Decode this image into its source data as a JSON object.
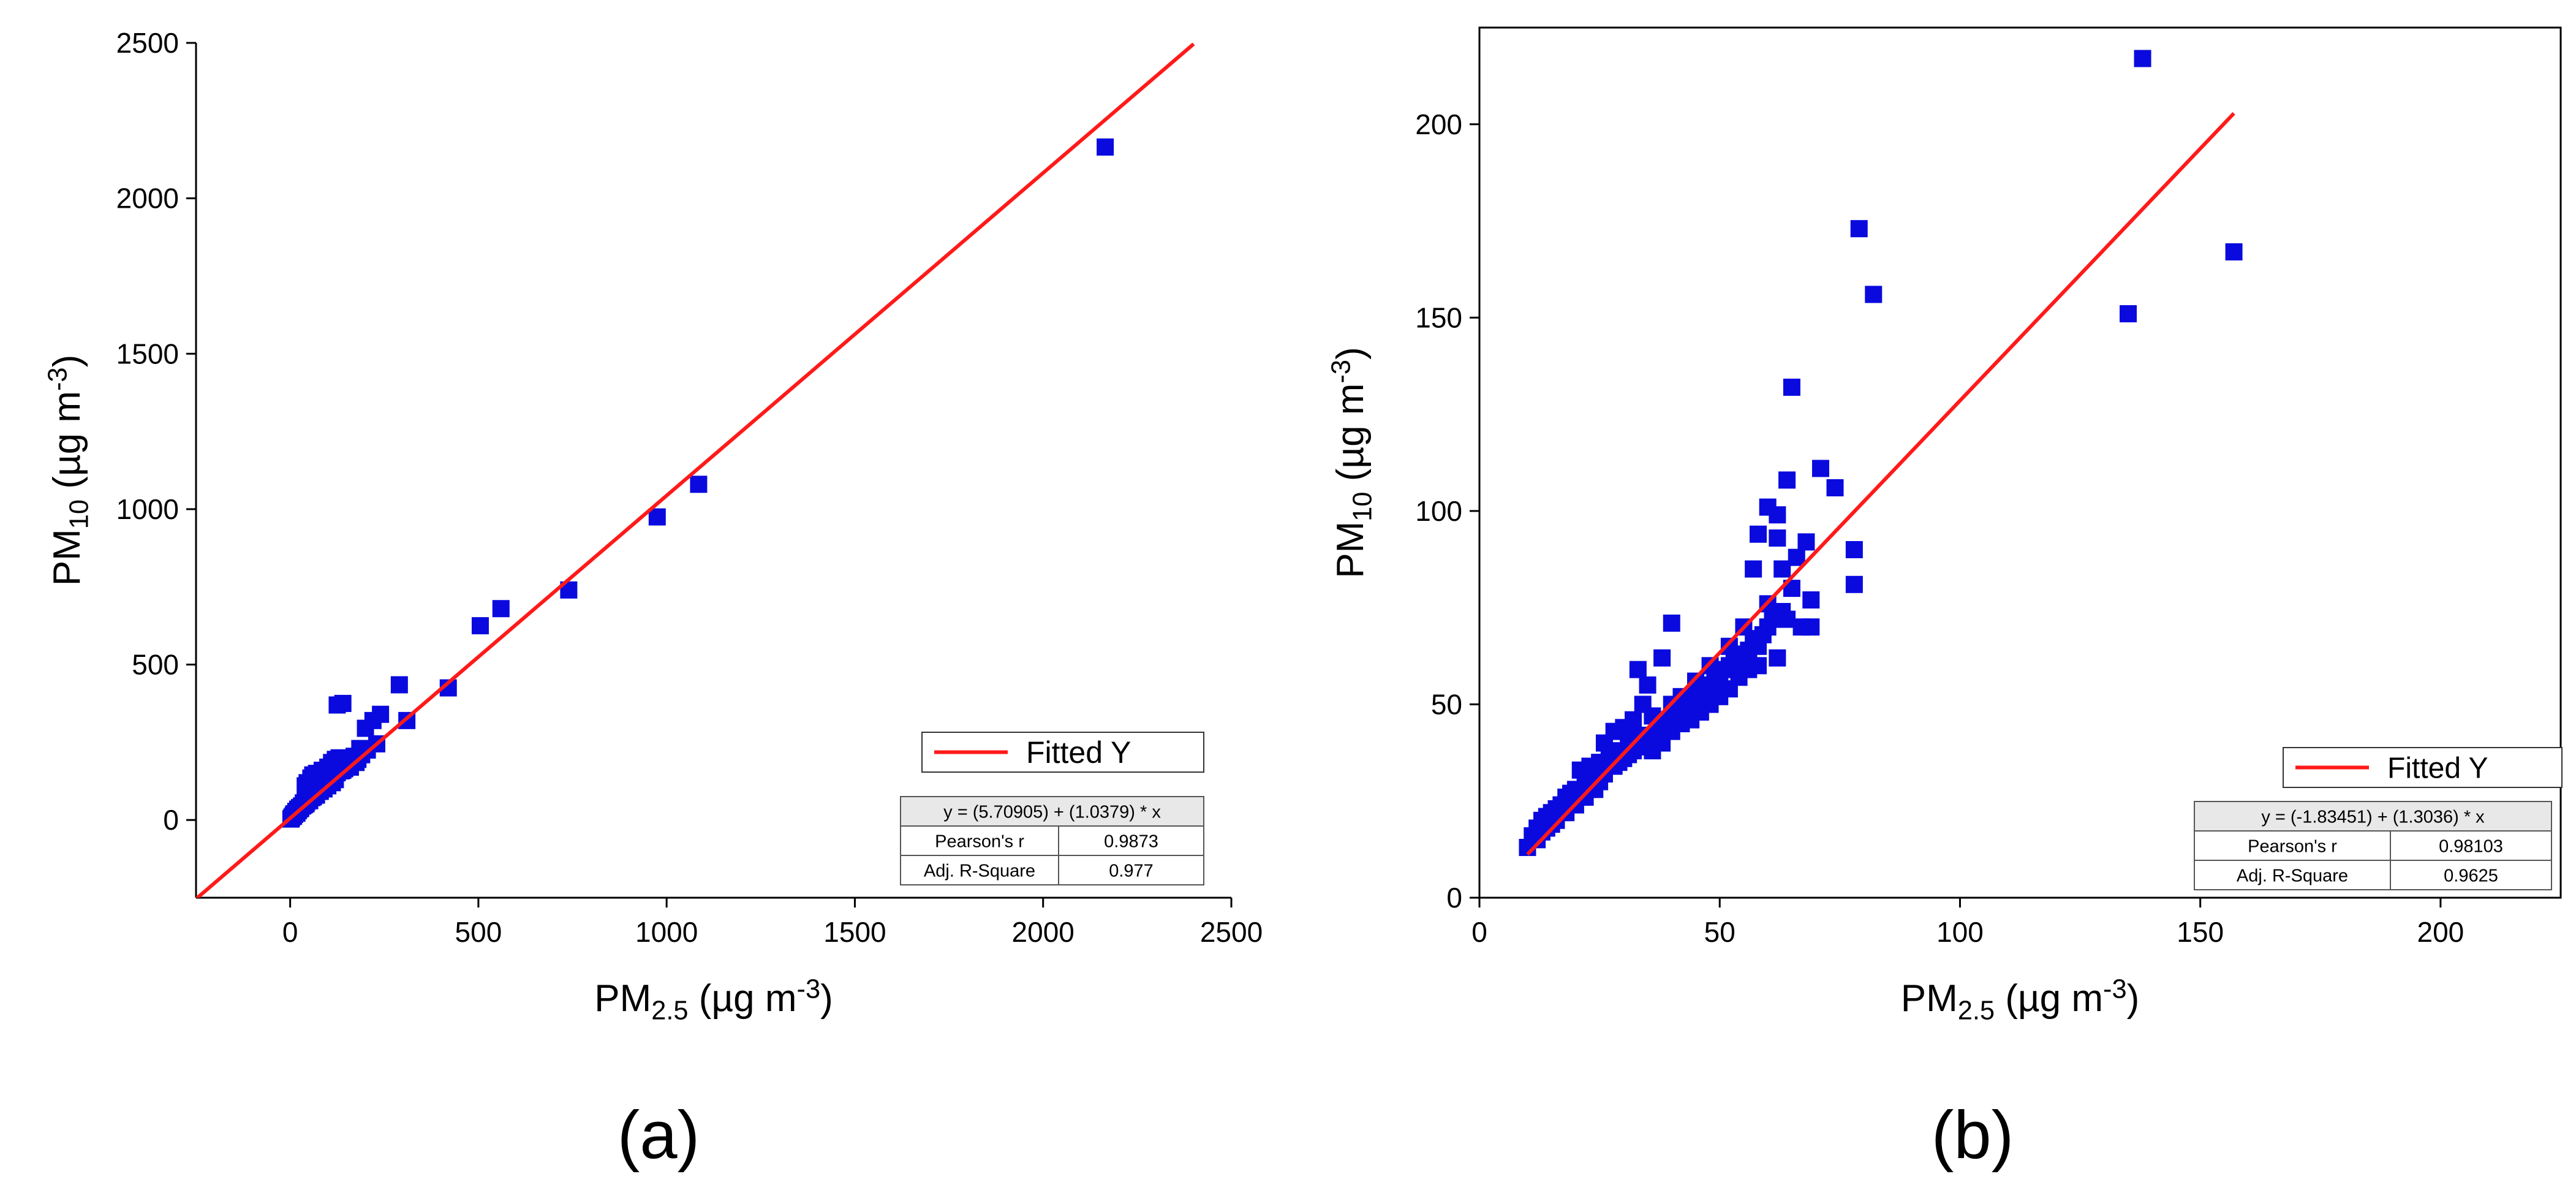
{
  "chart_data": [
    {
      "panel_label": "(a)",
      "type": "scatter",
      "xlabel": {
        "base": "PM",
        "sub": "2.5",
        "rest": " (µg m",
        "sup": "-3",
        "close": ")"
      },
      "ylabel": {
        "base": "PM",
        "sub": "10",
        "rest": " (µg m",
        "sup": "-3",
        "close": ")"
      },
      "xlim": [
        -250,
        2500
      ],
      "ylim": [
        -250,
        2500
      ],
      "xticks": [
        0,
        500,
        1000,
        1500,
        2000,
        2500
      ],
      "yticks": [
        0,
        500,
        1000,
        1500,
        2000,
        2500
      ],
      "marker_color": "#0a0adf",
      "fit": {
        "intercept": 5.70905,
        "slope": 1.0379,
        "color": "#ff1a1a",
        "x_range": [
          -250,
          2400
        ],
        "legend_label": "Fitted Y",
        "equation": "y = (5.70905) + (1.0379) * x",
        "stats": [
          {
            "name": "Pearson's r",
            "value": "0.9873"
          },
          {
            "name": "Adj. R-Square",
            "value": "0.977"
          }
        ]
      },
      "points": [
        [
          2165,
          2165
        ],
        [
          1085,
          1080
        ],
        [
          975,
          975
        ],
        [
          740,
          740
        ],
        [
          560,
          680
        ],
        [
          505,
          625
        ],
        [
          420,
          425
        ],
        [
          290,
          435
        ],
        [
          310,
          320
        ],
        [
          140,
          375
        ],
        [
          125,
          370
        ],
        [
          240,
          340
        ],
        [
          220,
          320
        ],
        [
          200,
          295
        ],
        [
          230,
          245
        ],
        [
          185,
          230
        ],
        [
          205,
          225
        ],
        [
          190,
          210
        ],
        [
          170,
          205
        ],
        [
          150,
          195
        ],
        [
          130,
          200
        ],
        [
          120,
          195
        ],
        [
          110,
          185
        ],
        [
          100,
          170
        ],
        [
          85,
          160
        ],
        [
          70,
          150
        ],
        [
          60,
          145
        ],
        [
          55,
          135
        ],
        [
          45,
          120
        ],
        [
          40,
          110
        ],
        [
          95,
          140
        ],
        [
          110,
          150
        ],
        [
          130,
          165
        ],
        [
          155,
          175
        ],
        [
          160,
          190
        ],
        [
          140,
          160
        ],
        [
          90,
          115
        ],
        [
          75,
          100
        ],
        [
          65,
          90
        ],
        [
          55,
          80
        ],
        [
          50,
          70
        ],
        [
          40,
          60
        ],
        [
          35,
          55
        ],
        [
          30,
          45
        ],
        [
          25,
          40
        ],
        [
          20,
          35
        ],
        [
          15,
          28
        ],
        [
          10,
          20
        ],
        [
          8,
          15
        ],
        [
          5,
          10
        ],
        [
          3,
          5
        ],
        [
          2,
          3
        ],
        [
          12,
          18
        ],
        [
          18,
          22
        ],
        [
          22,
          30
        ],
        [
          28,
          38
        ],
        [
          33,
          45
        ],
        [
          38,
          50
        ],
        [
          44,
          58
        ],
        [
          48,
          66
        ],
        [
          58,
          72
        ],
        [
          62,
          80
        ],
        [
          68,
          88
        ],
        [
          72,
          95
        ],
        [
          78,
          102
        ],
        [
          82,
          110
        ],
        [
          88,
          118
        ],
        [
          92,
          125
        ],
        [
          98,
          132
        ],
        [
          105,
          138
        ],
        [
          115,
          145
        ],
        [
          125,
          152
        ],
        [
          135,
          158
        ],
        [
          145,
          165
        ],
        [
          160,
          170
        ],
        [
          175,
          185
        ],
        [
          180,
          195
        ],
        [
          62,
          75
        ],
        [
          52,
          62
        ],
        [
          42,
          52
        ],
        [
          36,
          48
        ],
        [
          26,
          36
        ],
        [
          16,
          24
        ],
        [
          9,
          12
        ],
        [
          70,
          80
        ],
        [
          80,
          92
        ],
        [
          90,
          100
        ],
        [
          100,
          110
        ],
        [
          112,
          120
        ],
        [
          120,
          130
        ]
      ]
    },
    {
      "panel_label": "(b)",
      "type": "scatter",
      "xlabel": {
        "base": "PM",
        "sub": "2.5",
        "rest": " (µg m",
        "sup": "-3",
        "close": ")"
      },
      "ylabel": {
        "base": "PM",
        "sub": "10",
        "rest": " (µg m",
        "sup": "-3",
        "close": ")"
      },
      "xlim": [
        0,
        225
      ],
      "ylim": [
        0,
        225
      ],
      "xticks": [
        0,
        50,
        100,
        150,
        200
      ],
      "yticks": [
        0,
        50,
        100,
        150,
        200
      ],
      "marker_color": "#0a0adf",
      "fit": {
        "intercept": -1.83451,
        "slope": 1.3036,
        "color": "#ff1a1a",
        "x_range": [
          10,
          157
        ],
        "legend_label": "Fitted Y",
        "equation": "y = (-1.83451) + (1.3036) * x",
        "stats": [
          {
            "name": "Pearson's r",
            "value": "0.98103"
          },
          {
            "name": "Adj. R-Square",
            "value": "0.9625"
          }
        ]
      },
      "points": [
        [
          138,
          217
        ],
        [
          79,
          173
        ],
        [
          82,
          156
        ],
        [
          157,
          167
        ],
        [
          135,
          151
        ],
        [
          65,
          132
        ],
        [
          71,
          111
        ],
        [
          74,
          106
        ],
        [
          64,
          108
        ],
        [
          60,
          101
        ],
        [
          62,
          99
        ],
        [
          58,
          94
        ],
        [
          62,
          93
        ],
        [
          68,
          92
        ],
        [
          66,
          88
        ],
        [
          78,
          90
        ],
        [
          57,
          85
        ],
        [
          63,
          85
        ],
        [
          69,
          77
        ],
        [
          78,
          81
        ],
        [
          67,
          70
        ],
        [
          69,
          70
        ],
        [
          64,
          72
        ],
        [
          60,
          76
        ],
        [
          55,
          70
        ],
        [
          52,
          65
        ],
        [
          58,
          65
        ],
        [
          56,
          61
        ],
        [
          62,
          62
        ],
        [
          40,
          71
        ],
        [
          38,
          62
        ],
        [
          33,
          59
        ],
        [
          35,
          55
        ],
        [
          34,
          50
        ],
        [
          48,
          60
        ],
        [
          45,
          56
        ],
        [
          50,
          55
        ],
        [
          42,
          52
        ],
        [
          46,
          51
        ],
        [
          44,
          48
        ],
        [
          40,
          50
        ],
        [
          36,
          47
        ],
        [
          32,
          46
        ],
        [
          30,
          44
        ],
        [
          28,
          43
        ],
        [
          26,
          40
        ],
        [
          31,
          40
        ],
        [
          33,
          42
        ],
        [
          29,
          38
        ],
        [
          27,
          37
        ],
        [
          25,
          35
        ],
        [
          23,
          34
        ],
        [
          21,
          33
        ],
        [
          22,
          30
        ],
        [
          24,
          31
        ],
        [
          20,
          28
        ],
        [
          19,
          27
        ],
        [
          18,
          26
        ],
        [
          17,
          24
        ],
        [
          16,
          23
        ],
        [
          15,
          22
        ],
        [
          14,
          21
        ],
        [
          13,
          20
        ],
        [
          12,
          18
        ],
        [
          11,
          16
        ],
        [
          10,
          13
        ],
        [
          12,
          15
        ],
        [
          14,
          18
        ],
        [
          16,
          20
        ],
        [
          18,
          22
        ],
        [
          20,
          24
        ],
        [
          22,
          26
        ],
        [
          24,
          28
        ],
        [
          26,
          32
        ],
        [
          28,
          34
        ],
        [
          30,
          36
        ],
        [
          32,
          38
        ],
        [
          34,
          40
        ],
        [
          36,
          42
        ],
        [
          38,
          45
        ],
        [
          40,
          46
        ],
        [
          42,
          48
        ],
        [
          44,
          50
        ],
        [
          46,
          53
        ],
        [
          48,
          55
        ],
        [
          50,
          58
        ],
        [
          52,
          60
        ],
        [
          54,
          62
        ],
        [
          56,
          64
        ],
        [
          58,
          67
        ],
        [
          60,
          70
        ],
        [
          27,
          35
        ],
        [
          29,
          35
        ],
        [
          31,
          37
        ],
        [
          33,
          39
        ],
        [
          35,
          41
        ],
        [
          37,
          44
        ],
        [
          39,
          46
        ],
        [
          41,
          47
        ],
        [
          43,
          49
        ],
        [
          45,
          52
        ],
        [
          47,
          54
        ],
        [
          49,
          57
        ],
        [
          51,
          59
        ],
        [
          53,
          61
        ],
        [
          55,
          63
        ],
        [
          57,
          66
        ],
        [
          59,
          68
        ],
        [
          61,
          72
        ],
        [
          63,
          74
        ],
        [
          65,
          80
        ],
        [
          36,
          38
        ],
        [
          38,
          40
        ],
        [
          40,
          43
        ],
        [
          42,
          45
        ],
        [
          44,
          46
        ],
        [
          46,
          48
        ],
        [
          48,
          50
        ],
        [
          50,
          52
        ],
        [
          52,
          54
        ],
        [
          54,
          57
        ],
        [
          56,
          59
        ],
        [
          58,
          60
        ],
        [
          25,
          30
        ],
        [
          23,
          28
        ],
        [
          21,
          26
        ],
        [
          19,
          24
        ],
        [
          17,
          22
        ],
        [
          15,
          19
        ],
        [
          13,
          17
        ]
      ]
    }
  ]
}
